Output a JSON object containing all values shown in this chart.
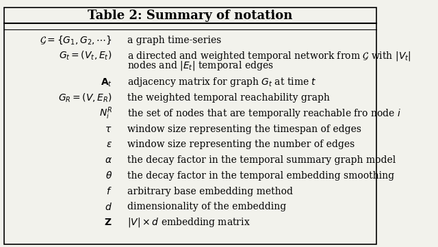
{
  "title": "Table 2: Summary of notation",
  "bg_color": "#f2f2ec",
  "border_color": "#000000",
  "rows": [
    {
      "symbol": "$\\mathcal{G} = \\{G_1, G_2, \\cdots\\}$",
      "description": "a graph time-series",
      "extra_line": null
    },
    {
      "symbol": "$G_t = (V_t, E_t)$",
      "description": "a directed and weighted temporal network from $\\mathcal{G}$ with $|V_t|$",
      "extra_line": "nodes and $|E_t|$ temporal edges"
    },
    {
      "symbol": "$\\mathbf{A}_t$",
      "description": "adjacency matrix for graph $G_t$ at time $t$",
      "extra_line": null
    },
    {
      "symbol": "$G_R = (V, E_R)$",
      "description": "the weighted temporal reachability graph",
      "extra_line": null
    },
    {
      "symbol": "$N_i^R$",
      "description": "the set of nodes that are temporally reachable fro node $i$",
      "extra_line": null
    },
    {
      "symbol": "$\\tau$",
      "description": "window size representing the timespan of edges",
      "extra_line": null
    },
    {
      "symbol": "$\\epsilon$",
      "description": "window size representing the number of edges",
      "extra_line": null
    },
    {
      "symbol": "$\\alpha$",
      "description": "the decay factor in the temporal summary graph model",
      "extra_line": null
    },
    {
      "symbol": "$\\theta$",
      "description": "the decay factor in the temporal embedding smoothing",
      "extra_line": null
    },
    {
      "symbol": "$f$",
      "description": "arbitrary base embedding method",
      "extra_line": null
    },
    {
      "symbol": "$d$",
      "description": "dimensionality of the embedding",
      "extra_line": null
    },
    {
      "symbol": "$\\mathbf{Z}$",
      "description": "$|V| \\times d$ embedding matrix",
      "extra_line": null
    }
  ],
  "title_fontsize": 13,
  "row_fontsize": 10,
  "title_color": "#000000",
  "text_color": "#000000"
}
